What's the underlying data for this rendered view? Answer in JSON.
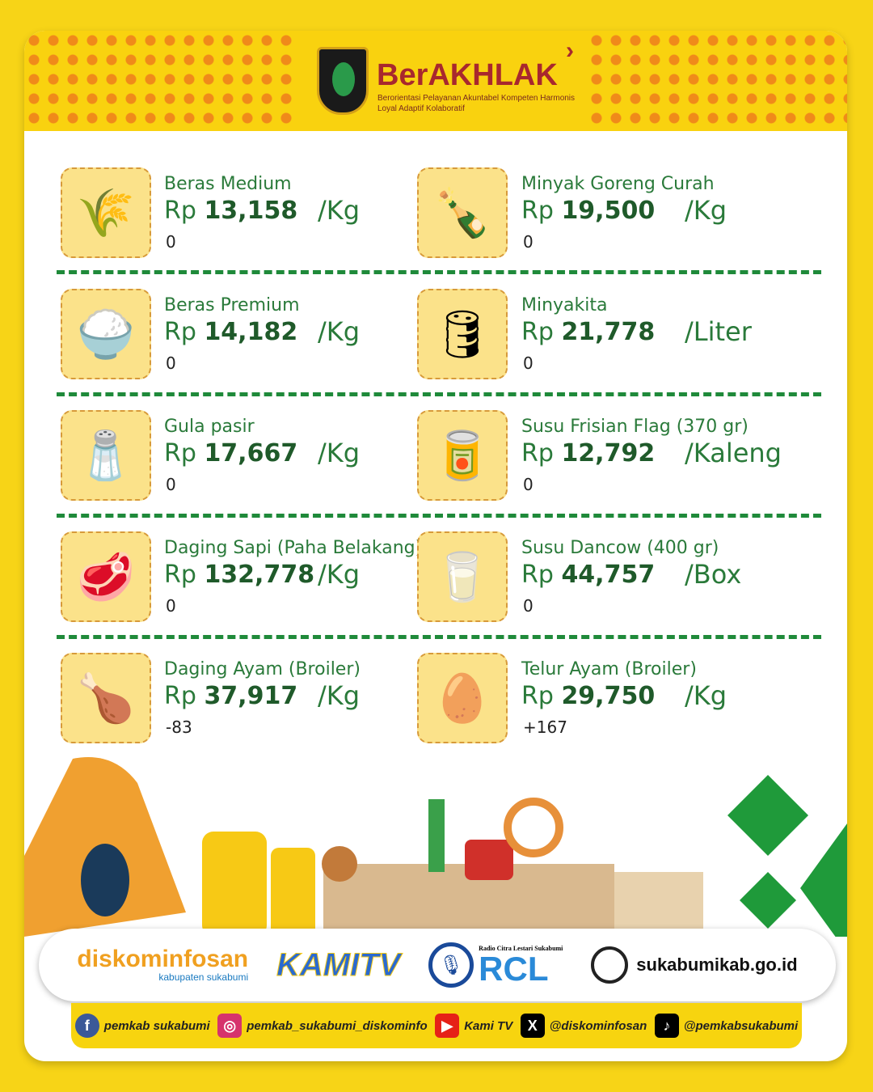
{
  "header": {
    "brand": "BerAKHLAK",
    "tagline": "Berorientasi Pelayanan Akuntabel Kompeten Harmonis Loyal Adaptif Kolaboratif"
  },
  "items": [
    {
      "name": "Beras Medium",
      "currency": "Rp",
      "price": "13,158",
      "unit": "/Kg",
      "change": "0",
      "icon": "rice-sack-icon"
    },
    {
      "name": "Minyak Goreng Curah",
      "currency": "Rp",
      "price": "19,500",
      "unit": "/Kg",
      "change": "0",
      "icon": "oil-bottle-icon"
    },
    {
      "name": "Beras Premium",
      "currency": "Rp",
      "price": "14,182",
      "unit": "/Kg",
      "change": "0",
      "icon": "rice-bag-icon"
    },
    {
      "name": "Minyakita",
      "currency": "Rp",
      "price": "21,778",
      "unit": "/Liter",
      "change": "0",
      "icon": "oil-jerrycan-icon"
    },
    {
      "name": "Gula pasir",
      "currency": "Rp",
      "price": "17,667",
      "unit": "/Kg",
      "change": "0",
      "icon": "sugar-bag-icon"
    },
    {
      "name": "Susu Frisian Flag (370 gr)",
      "currency": "Rp",
      "price": "12,792",
      "unit": "/Kaleng",
      "change": "0",
      "icon": "condensed-milk-can-icon"
    },
    {
      "name": "Daging Sapi (Paha Belakang)",
      "currency": "Rp",
      "price": "132,778",
      "unit": "/Kg",
      "change": "0",
      "icon": "beef-icon"
    },
    {
      "name": "Susu Dancow (400 gr)",
      "currency": "Rp",
      "price": "44,757",
      "unit": "/Box",
      "change": "0",
      "icon": "milk-box-icon"
    },
    {
      "name": "Daging Ayam (Broiler)",
      "currency": "Rp",
      "price": "37,917",
      "unit": "/Kg",
      "change": "-83",
      "icon": "chicken-leg-icon"
    },
    {
      "name": "Telur Ayam (Broiler)",
      "currency": "Rp",
      "price": "29,750",
      "unit": "/Kg",
      "change": "+167",
      "icon": "egg-icon"
    }
  ],
  "footer": {
    "diskominfosan": "diskominfosan",
    "diskominfosan_sub": "kabupaten sukabumi",
    "kamitv": "KAMITV",
    "rcl": "RCL",
    "rcl_sub": "Radio Citra Lestari Sukabumi",
    "website": "sukabumikab.go.id"
  },
  "social": [
    {
      "icon": "facebook-icon",
      "label": "pemkab sukabumi",
      "color": "#3b5998"
    },
    {
      "icon": "instagram-icon",
      "label": "pemkab_sukabumi_diskominfo",
      "color": "#d6336c"
    },
    {
      "icon": "youtube-icon",
      "label": "Kami TV",
      "color": "#e62117"
    },
    {
      "icon": "x-icon",
      "label": "@diskominfosan",
      "color": "#000000"
    },
    {
      "icon": "tiktok-icon",
      "label": "@pemkabsukabumi",
      "color": "#000000"
    }
  ],
  "colors": {
    "background": "#f7d417",
    "green": "#2a7a3a",
    "brand": "#a8282e"
  }
}
